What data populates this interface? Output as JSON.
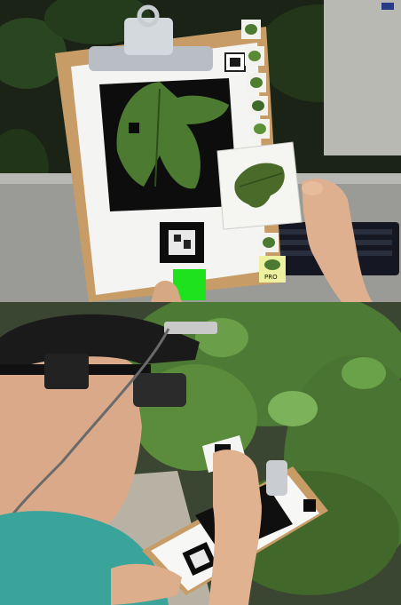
{
  "figure": {
    "panels": [
      {
        "id": "top",
        "subject": "ar-leaf-identification-view"
      },
      {
        "id": "bottom",
        "subject": "user-with-head-worn-display"
      }
    ]
  },
  "colors": {
    "leaf_green": "#3f6a2a",
    "marker_green": "#1ee21e",
    "clipboard_wood": "#c79c66",
    "shirt_teal": "#3aa39a"
  },
  "ar_overlay": {
    "thumbnail_count": 6,
    "selected_card_label": "",
    "footer_label": "PRO"
  }
}
